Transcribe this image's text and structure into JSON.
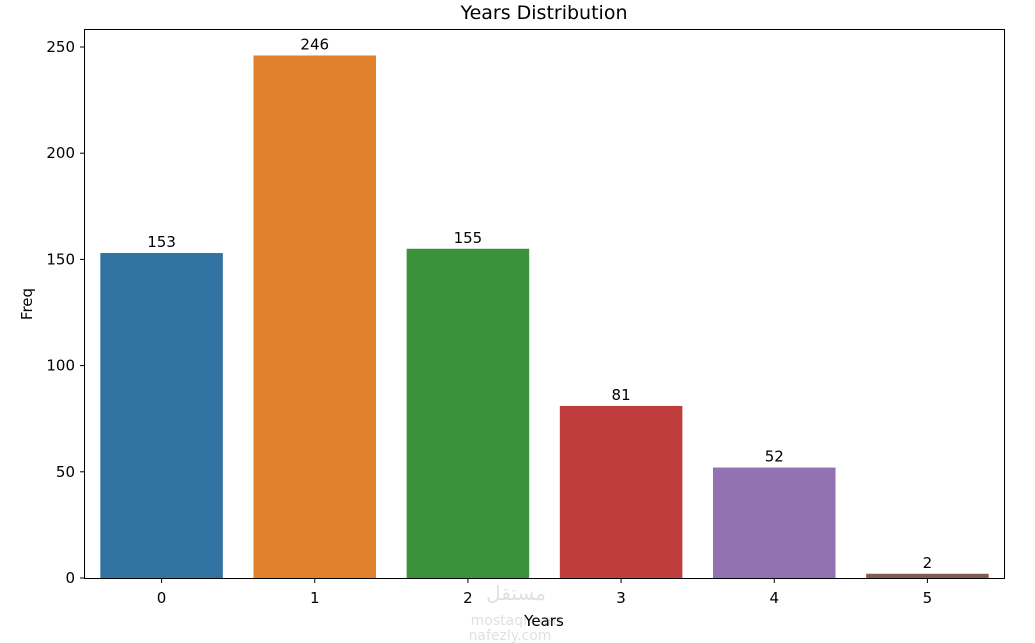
{
  "chart_data": {
    "type": "bar",
    "title": "Years Distribution",
    "xlabel": "Years",
    "ylabel": "Freq",
    "categories": [
      "0",
      "1",
      "2",
      "3",
      "4",
      "5"
    ],
    "values": [
      153,
      246,
      155,
      81,
      52,
      2
    ],
    "ylim": [
      0,
      258
    ],
    "yticks": [
      0,
      50,
      100,
      150,
      200,
      250
    ],
    "grid": false,
    "colors": [
      "#3274a1",
      "#e1812c",
      "#3a923a",
      "#c03d3e",
      "#9372b2",
      "#845b53"
    ]
  },
  "watermark": {
    "line1": "مستقل",
    "line2": "mostaql.com",
    "line3": "nafezly.com"
  }
}
